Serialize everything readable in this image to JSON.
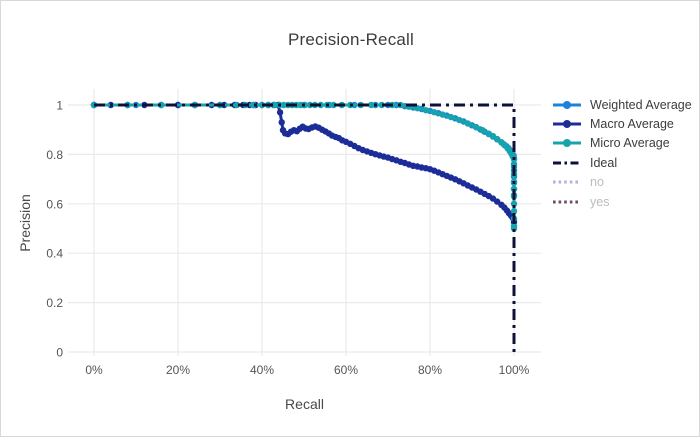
{
  "chart_data": {
    "type": "line",
    "title": "Precision-Recall",
    "xlabel": "Recall",
    "ylabel": "Precision",
    "x_range_pct": [
      0,
      100
    ],
    "y_range": [
      0,
      1
    ],
    "grid": true,
    "legend_position": "right",
    "x_tick_values": [
      0,
      20,
      40,
      60,
      80,
      100
    ],
    "x_tick_labels": [
      "0%",
      "20%",
      "40%",
      "60%",
      "80%",
      "100%"
    ],
    "y_tick_values": [
      0,
      0.2,
      0.4,
      0.6,
      0.8,
      1
    ],
    "y_tick_labels": [
      "0",
      "0.2",
      "0.4",
      "0.6",
      "0.8",
      "1"
    ],
    "colors": {
      "grid": "#eaeaea",
      "tick_label": "#555555",
      "axis_title": "#4a4a4a",
      "title": "#3c3c3c",
      "legend_active_text": "#3c3c3c",
      "legend_inactive_text": "#bcbcbc"
    },
    "series": [
      {
        "name": "Weighted Average",
        "color": "#1e82d8",
        "style": "line+markers",
        "visible": true,
        "points": [
          [
            0,
            1
          ],
          [
            10,
            1
          ],
          [
            20,
            1
          ],
          [
            30,
            1
          ],
          [
            38,
            1
          ],
          [
            44,
            1
          ],
          [
            50,
            1
          ],
          [
            56,
            1
          ],
          [
            62,
            1
          ],
          [
            67,
            1
          ],
          [
            70,
            1
          ],
          [
            72,
            1
          ],
          [
            74,
            0.995
          ],
          [
            76,
            0.99
          ],
          [
            78,
            0.984
          ],
          [
            80,
            0.976
          ],
          [
            82,
            0.967
          ],
          [
            84,
            0.957
          ],
          [
            86,
            0.946
          ],
          [
            88,
            0.933
          ],
          [
            90,
            0.918
          ],
          [
            91,
            0.91
          ],
          [
            92,
            0.901
          ],
          [
            93,
            0.892
          ],
          [
            94,
            0.882
          ],
          [
            95,
            0.872
          ],
          [
            96,
            0.861
          ],
          [
            97,
            0.849
          ],
          [
            97.6,
            0.841
          ],
          [
            98.2,
            0.833
          ],
          [
            98.7,
            0.825
          ],
          [
            99.2,
            0.815
          ],
          [
            99.6,
            0.805
          ],
          [
            99.9,
            0.795
          ],
          [
            100,
            0.785
          ],
          [
            100,
            0.76
          ],
          [
            100,
            0.735
          ],
          [
            100,
            0.71
          ],
          [
            100,
            0.685
          ],
          [
            100,
            0.66
          ],
          [
            100,
            0.635
          ]
        ]
      },
      {
        "name": "Macro Average",
        "color": "#1c2d99",
        "style": "line+markers",
        "visible": true,
        "points": [
          [
            0,
            1
          ],
          [
            4,
            1
          ],
          [
            8,
            1
          ],
          [
            12,
            1
          ],
          [
            16,
            1
          ],
          [
            20,
            1
          ],
          [
            24,
            1
          ],
          [
            28,
            1
          ],
          [
            31,
            1
          ],
          [
            33.5,
            1
          ],
          [
            35.5,
            1
          ],
          [
            37,
            1
          ],
          [
            38.5,
            1
          ],
          [
            40,
            1
          ],
          [
            41.5,
            1
          ],
          [
            42.8,
            1
          ],
          [
            43.8,
            1
          ],
          [
            44.3,
            0.97
          ],
          [
            44.7,
            0.93
          ],
          [
            45,
            0.898
          ],
          [
            45.5,
            0.885
          ],
          [
            46.2,
            0.882
          ],
          [
            46.9,
            0.892
          ],
          [
            47.6,
            0.898
          ],
          [
            48.3,
            0.894
          ],
          [
            49,
            0.904
          ],
          [
            49.7,
            0.912
          ],
          [
            50.4,
            0.905
          ],
          [
            51.1,
            0.903
          ],
          [
            51.9,
            0.909
          ],
          [
            52.7,
            0.913
          ],
          [
            53.5,
            0.908
          ],
          [
            54.3,
            0.9
          ],
          [
            55.1,
            0.893
          ],
          [
            55.9,
            0.885
          ],
          [
            56.7,
            0.876
          ],
          [
            57.5,
            0.871
          ],
          [
            58.3,
            0.866
          ],
          [
            59.1,
            0.857
          ],
          [
            60,
            0.851
          ],
          [
            61,
            0.843
          ],
          [
            62,
            0.834
          ],
          [
            63,
            0.825
          ],
          [
            64,
            0.818
          ],
          [
            65,
            0.812
          ],
          [
            66,
            0.806
          ],
          [
            67,
            0.801
          ],
          [
            68,
            0.796
          ],
          [
            69,
            0.791
          ],
          [
            70,
            0.787
          ],
          [
            71,
            0.781
          ],
          [
            72,
            0.776
          ],
          [
            73,
            0.77
          ],
          [
            74,
            0.765
          ],
          [
            75,
            0.759
          ],
          [
            76,
            0.754
          ],
          [
            77,
            0.751
          ],
          [
            78,
            0.747
          ],
          [
            79,
            0.744
          ],
          [
            80,
            0.74
          ],
          [
            81,
            0.734
          ],
          [
            82,
            0.727
          ],
          [
            83,
            0.72
          ],
          [
            84,
            0.713
          ],
          [
            85,
            0.706
          ],
          [
            86,
            0.699
          ],
          [
            87,
            0.691
          ],
          [
            88,
            0.683
          ],
          [
            89,
            0.674
          ],
          [
            90,
            0.666
          ],
          [
            91,
            0.658
          ],
          [
            92,
            0.649
          ],
          [
            93,
            0.64
          ],
          [
            94,
            0.631
          ],
          [
            95,
            0.621
          ],
          [
            96,
            0.609
          ],
          [
            97,
            0.596
          ],
          [
            97.7,
            0.585
          ],
          [
            98.3,
            0.573
          ],
          [
            98.8,
            0.562
          ],
          [
            99.3,
            0.552
          ],
          [
            99.7,
            0.543
          ],
          [
            100,
            0.535
          ],
          [
            100,
            0.525
          ]
        ]
      },
      {
        "name": "Micro Average",
        "color": "#17a3ab",
        "style": "line+markers",
        "visible": true,
        "points": [
          [
            0,
            1
          ],
          [
            8,
            1
          ],
          [
            16,
            1
          ],
          [
            24,
            1
          ],
          [
            30,
            1
          ],
          [
            34,
            1
          ],
          [
            36,
            1
          ],
          [
            38,
            1
          ],
          [
            40,
            1
          ],
          [
            41.5,
            1
          ],
          [
            43,
            1
          ],
          [
            44.2,
            1
          ],
          [
            45.2,
            1
          ],
          [
            46.2,
            1
          ],
          [
            47.2,
            1
          ],
          [
            48.2,
            1
          ],
          [
            49.2,
            1
          ],
          [
            50.2,
            1
          ],
          [
            51.4,
            1
          ],
          [
            52.6,
            1
          ],
          [
            54,
            1
          ],
          [
            55.5,
            1
          ],
          [
            57,
            1
          ],
          [
            59,
            1
          ],
          [
            61,
            1
          ],
          [
            63.5,
            1
          ],
          [
            66,
            1
          ],
          [
            68.5,
            1
          ],
          [
            71,
            1
          ],
          [
            73,
            1
          ],
          [
            75,
            0.993
          ],
          [
            77,
            0.987
          ],
          [
            79,
            0.979
          ],
          [
            81,
            0.971
          ],
          [
            83,
            0.961
          ],
          [
            85,
            0.951
          ],
          [
            87,
            0.939
          ],
          [
            89,
            0.925
          ],
          [
            91,
            0.91
          ],
          [
            92.5,
            0.898
          ],
          [
            94,
            0.884
          ],
          [
            95,
            0.874
          ],
          [
            96,
            0.862
          ],
          [
            97,
            0.849
          ],
          [
            97.8,
            0.837
          ],
          [
            98.5,
            0.824
          ],
          [
            99,
            0.813
          ],
          [
            99.4,
            0.802
          ],
          [
            99.7,
            0.792
          ],
          [
            100,
            0.78
          ],
          [
            100,
            0.75
          ],
          [
            100,
            0.72
          ],
          [
            100,
            0.69
          ],
          [
            100,
            0.66
          ],
          [
            100,
            0.63
          ],
          [
            100,
            0.6
          ],
          [
            100,
            0.57
          ],
          [
            100,
            0.54
          ],
          [
            100,
            0.51
          ],
          [
            100,
            0.5
          ]
        ]
      },
      {
        "name": "Ideal",
        "color": "#0e1038",
        "style": "dashdot",
        "visible": true,
        "points": [
          [
            0,
            1
          ],
          [
            100,
            1
          ],
          [
            100,
            0
          ]
        ]
      },
      {
        "name": "no",
        "color": "#b7aede",
        "style": "dotted",
        "visible": false,
        "points": []
      },
      {
        "name": "yes",
        "color": "#6f4a68",
        "style": "dotted",
        "visible": false,
        "points": []
      }
    ]
  }
}
